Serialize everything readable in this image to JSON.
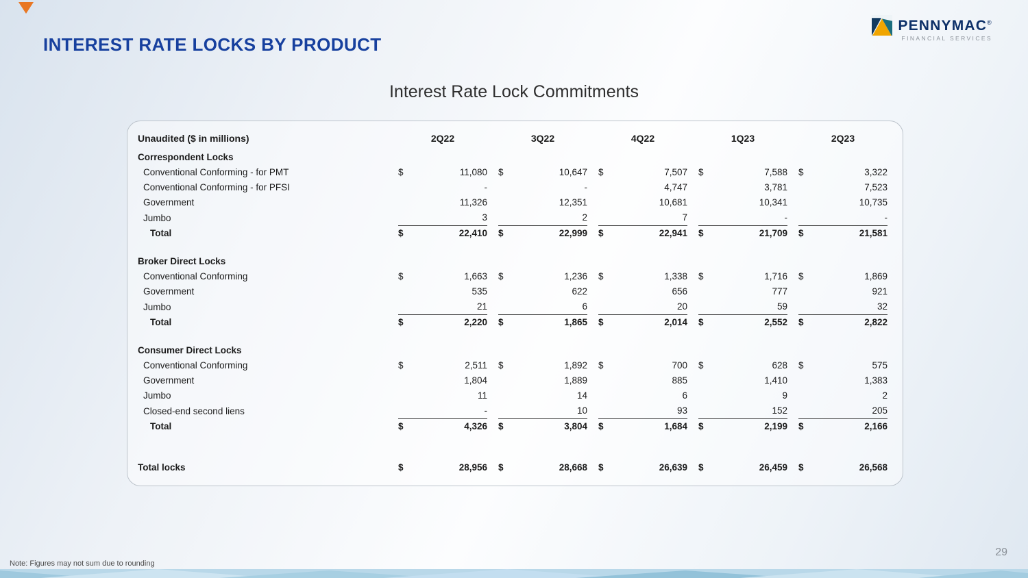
{
  "header": {
    "title": "INTEREST RATE LOCKS BY PRODUCT"
  },
  "logo": {
    "brand": "PENNYMAC",
    "registered": "®",
    "tagline": "FINANCIAL SERVICES"
  },
  "colors": {
    "title_blue": "#17409e",
    "brand_navy": "#0d3068",
    "accent_orange": "#e87724",
    "logo_teal": "#1b6e7e",
    "band_blue": "#b9d8e9"
  },
  "icons": {
    "logo_mark": "pennymac-mark",
    "corner": "corner-accent-triangle"
  },
  "table": {
    "title": "Interest Rate Lock Commitments",
    "header_label": "Unaudited ($ in millions)",
    "currency_symbol": "$",
    "columns": [
      "2Q22",
      "3Q22",
      "4Q22",
      "1Q23",
      "2Q23"
    ],
    "sections": [
      {
        "name": "Correspondent Locks",
        "rows": [
          {
            "label": "Conventional Conforming - for PMT",
            "dollar": true,
            "underline": false,
            "values": [
              "11,080",
              "10,647",
              "7,507",
              "7,588",
              "3,322"
            ]
          },
          {
            "label": "Conventional Conforming - for PFSI",
            "dollar": false,
            "underline": false,
            "values": [
              "-",
              "-",
              "4,747",
              "3,781",
              "7,523"
            ]
          },
          {
            "label": "Government",
            "dollar": false,
            "underline": false,
            "values": [
              "11,326",
              "12,351",
              "10,681",
              "10,341",
              "10,735"
            ]
          },
          {
            "label": "Jumbo",
            "dollar": false,
            "underline": true,
            "values": [
              "3",
              "2",
              "7",
              "-",
              "-"
            ]
          }
        ],
        "total": {
          "label": "Total",
          "dollar": true,
          "values": [
            "22,410",
            "22,999",
            "22,941",
            "21,709",
            "21,581"
          ]
        }
      },
      {
        "name": "Broker Direct Locks",
        "rows": [
          {
            "label": "Conventional Conforming",
            "dollar": true,
            "underline": false,
            "values": [
              "1,663",
              "1,236",
              "1,338",
              "1,716",
              "1,869"
            ]
          },
          {
            "label": "Government",
            "dollar": false,
            "underline": false,
            "values": [
              "535",
              "622",
              "656",
              "777",
              "921"
            ]
          },
          {
            "label": "Jumbo",
            "dollar": false,
            "underline": true,
            "values": [
              "21",
              "6",
              "20",
              "59",
              "32"
            ]
          }
        ],
        "total": {
          "label": "Total",
          "dollar": true,
          "values": [
            "2,220",
            "1,865",
            "2,014",
            "2,552",
            "2,822"
          ]
        }
      },
      {
        "name": "Consumer Direct Locks",
        "rows": [
          {
            "label": "Conventional Conforming",
            "dollar": true,
            "underline": false,
            "values": [
              "2,511",
              "1,892",
              "700",
              "628",
              "575"
            ]
          },
          {
            "label": "Government",
            "dollar": false,
            "underline": false,
            "values": [
              "1,804",
              "1,889",
              "885",
              "1,410",
              "1,383"
            ]
          },
          {
            "label": "Jumbo",
            "dollar": false,
            "underline": false,
            "values": [
              "11",
              "14",
              "6",
              "9",
              "2"
            ]
          },
          {
            "label": "Closed-end second liens",
            "dollar": false,
            "underline": true,
            "values": [
              "-",
              "10",
              "93",
              "152",
              "205"
            ]
          }
        ],
        "total": {
          "label": "Total",
          "dollar": true,
          "values": [
            "4,326",
            "3,804",
            "1,684",
            "2,199",
            "2,166"
          ]
        }
      }
    ],
    "total_locks": {
      "label": "Total locks",
      "dollar": true,
      "values": [
        "28,956",
        "28,668",
        "26,639",
        "26,459",
        "26,568"
      ]
    }
  },
  "footer": {
    "note": "Note: Figures may not sum due to rounding",
    "page_number": "29"
  }
}
